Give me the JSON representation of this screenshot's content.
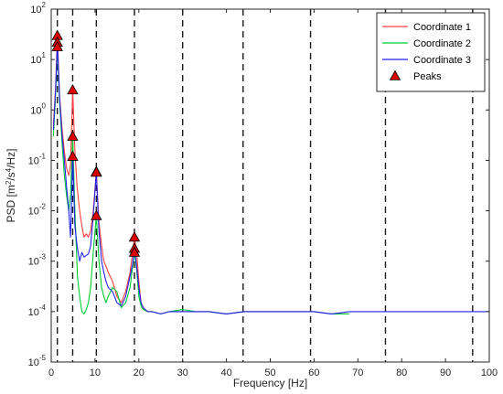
{
  "chart_data": {
    "type": "line",
    "xlabel": "Frequency [Hz]",
    "ylabel": {
      "prefix": "PSD [m",
      "sup1": "2",
      "mid": "/s",
      "sup2": "4",
      "suffix": "/Hz]"
    },
    "xlim": [
      0,
      100
    ],
    "ylim": [
      1e-05,
      100
    ],
    "yscale": "log",
    "grid": "off",
    "legend_position": "top-right",
    "x_ticks": [
      0,
      10,
      20,
      30,
      40,
      50,
      60,
      70,
      80,
      90,
      100
    ],
    "x_tick_labels": [
      "0",
      "10",
      "20",
      "30",
      "40",
      "50",
      "60",
      "70",
      "80",
      "90",
      "100"
    ],
    "y_ticks": [
      1e-05,
      0.0001,
      0.001,
      0.01,
      0.1,
      1,
      10,
      100
    ],
    "y_tick_labels": [
      {
        "base": "10",
        "exp": "-5"
      },
      {
        "base": "10",
        "exp": "-4"
      },
      {
        "base": "10",
        "exp": "-3"
      },
      {
        "base": "10",
        "exp": "-2"
      },
      {
        "base": "10",
        "exp": "-1"
      },
      {
        "base": "10",
        "exp": "0"
      },
      {
        "base": "10",
        "exp": "1"
      },
      {
        "base": "10",
        "exp": "2"
      }
    ],
    "vertical_dashed_lines": [
      1.4,
      4.9,
      10.3,
      19.0,
      30.0,
      43.8,
      59.2,
      76.3,
      96.2
    ],
    "series": [
      {
        "name": "Coordinate 1",
        "color": "#ff4040",
        "x": [
          0.5,
          1.0,
          1.4,
          1.9,
          2.5,
          3.0,
          3.5,
          4.0,
          4.4,
          4.9,
          5.4,
          5.9,
          6.5,
          7.0,
          7.5,
          8.0,
          8.5,
          9.0,
          9.6,
          10.3,
          10.9,
          11.5,
          12.0,
          12.5,
          13.0,
          14.0,
          15.0,
          16.0,
          17.0,
          18.0,
          18.6,
          19.0,
          19.5,
          20.0,
          20.5,
          21.0,
          22.0,
          23.0,
          25.0,
          27.0,
          30.0,
          33.0,
          36.0,
          40.0,
          44.0,
          48.0,
          52.0,
          56.0,
          60.0,
          64.0,
          68.0
        ],
        "y": [
          0.5,
          3.0,
          30,
          2.0,
          0.4,
          0.15,
          0.07,
          0.05,
          0.08,
          2.5,
          0.15,
          0.03,
          0.01,
          0.005,
          0.003,
          0.0035,
          0.003,
          0.004,
          0.01,
          0.06,
          0.006,
          0.002,
          0.001,
          0.0008,
          0.0006,
          0.0004,
          0.0002,
          0.00015,
          0.00025,
          0.0006,
          0.0015,
          0.003,
          0.0015,
          0.0004,
          0.00015,
          0.00012,
          0.0001,
          0.0001,
          9e-05,
          0.0001,
          0.0001,
          0.0001,
          0.0001,
          9e-05,
          0.0001,
          0.0001,
          0.0001,
          0.0001,
          0.0001,
          9e-05,
          9e-05
        ]
      },
      {
        "name": "Coordinate 2",
        "color": "#00cc33",
        "x": [
          0.5,
          1.0,
          1.4,
          1.9,
          2.5,
          3.0,
          3.5,
          4.0,
          4.4,
          4.9,
          5.4,
          6.0,
          6.5,
          7.0,
          7.5,
          8.0,
          8.5,
          9.0,
          9.6,
          10.3,
          10.9,
          11.5,
          12.0,
          12.5,
          13.0,
          14.0,
          15.0,
          16.0,
          17.0,
          18.0,
          18.6,
          19.0,
          19.5,
          20.0,
          20.5,
          21.0,
          22.0,
          23.0,
          25.0,
          27.0,
          30.0,
          33.0,
          36.0,
          40.0,
          44.0,
          48.0,
          52.0,
          56.0,
          60.0,
          64.0,
          68.0
        ],
        "y": [
          0.3,
          2.0,
          18,
          1.5,
          0.2,
          0.05,
          0.02,
          0.01,
          0.02,
          0.3,
          0.01,
          0.0005,
          0.0002,
          0.0001,
          9e-05,
          0.00011,
          0.00015,
          0.0003,
          0.0015,
          0.008,
          0.001,
          0.0003,
          0.0002,
          0.00015,
          0.0002,
          0.0003,
          0.00025,
          0.00012,
          0.00015,
          0.0003,
          0.0008,
          0.0015,
          0.0007,
          0.0002,
          0.00013,
          0.00011,
          0.0001,
          0.0001,
          9e-05,
          0.0001,
          0.00011,
          0.0001,
          0.0001,
          9e-05,
          0.0001,
          0.0001,
          0.0001,
          0.0001,
          0.0001,
          9e-05,
          9e-05
        ]
      },
      {
        "name": "Coordinate 3",
        "color": "#2222ee",
        "x": [
          0.5,
          1.0,
          1.4,
          1.9,
          2.5,
          3.0,
          3.5,
          4.0,
          4.4,
          4.9,
          5.4,
          5.9,
          6.5,
          7.0,
          7.5,
          8.0,
          8.5,
          9.0,
          9.6,
          10.3,
          10.9,
          11.5,
          12.0,
          12.5,
          13.0,
          14.0,
          15.0,
          16.0,
          17.0,
          18.0,
          18.6,
          19.0,
          19.5,
          20.0,
          20.5,
          21.0,
          22.0,
          23.0,
          25.0,
          27.0,
          30.0,
          33.0,
          36.0,
          40.0,
          44.0,
          48.0,
          52.0,
          56.0,
          60.0,
          64.0,
          68.0,
          72.0,
          76.0,
          80.0,
          84.0,
          88.0,
          92.0,
          96.0,
          100.0
        ],
        "y": [
          0.4,
          2.5,
          22,
          1.8,
          0.3,
          0.1,
          0.03,
          0.01,
          0.003,
          0.12,
          0.005,
          0.002,
          0.001,
          0.0015,
          0.0012,
          0.0013,
          0.0014,
          0.002,
          0.008,
          0.058,
          0.004,
          0.001,
          0.0006,
          0.0004,
          0.0003,
          0.00025,
          0.00015,
          0.00013,
          0.0002,
          0.0005,
          0.0009,
          0.0018,
          0.0008,
          0.0003,
          0.00015,
          0.00012,
          0.0001,
          0.0001,
          9e-05,
          0.0001,
          0.0001,
          0.0001,
          0.0001,
          9e-05,
          0.0001,
          0.0001,
          0.0001,
          0.0001,
          0.0001,
          9e-05,
          0.0001,
          0.0001,
          0.0001,
          0.0001,
          0.0001,
          0.0001,
          0.0001,
          0.0001,
          0.0001
        ]
      }
    ],
    "peaks": {
      "name": "Peaks",
      "color": "#dd0000",
      "points": [
        {
          "x": 1.4,
          "y": 30
        },
        {
          "x": 1.4,
          "y": 22
        },
        {
          "x": 1.4,
          "y": 18
        },
        {
          "x": 4.9,
          "y": 2.5
        },
        {
          "x": 4.9,
          "y": 0.3
        },
        {
          "x": 4.9,
          "y": 0.12
        },
        {
          "x": 10.3,
          "y": 0.06
        },
        {
          "x": 10.3,
          "y": 0.058
        },
        {
          "x": 10.3,
          "y": 0.008
        },
        {
          "x": 19.0,
          "y": 0.003
        },
        {
          "x": 19.0,
          "y": 0.0018
        },
        {
          "x": 19.0,
          "y": 0.0015
        }
      ]
    }
  }
}
